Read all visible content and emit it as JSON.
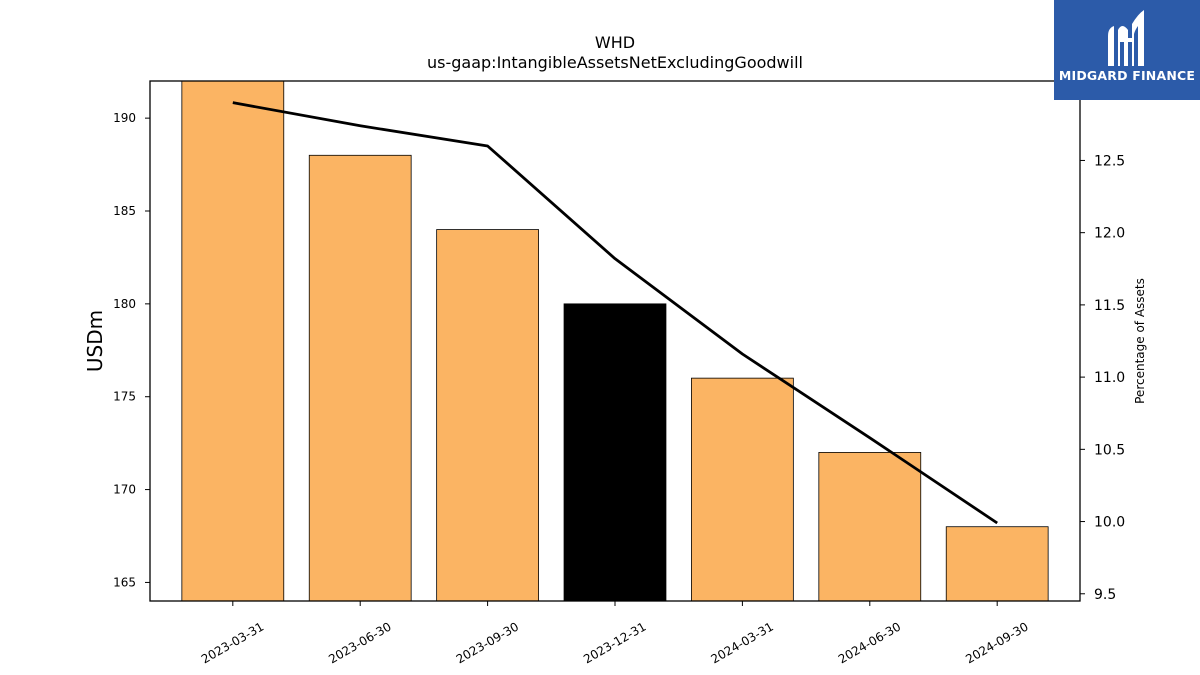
{
  "chart_data": {
    "type": "bar",
    "title": "WHD",
    "subtitle": "us-gaap:IntangibleAssetsNetExcludingGoodwill",
    "categories": [
      "2023-03-31",
      "2023-06-30",
      "2023-09-30",
      "2023-12-31",
      "2024-03-31",
      "2024-06-30",
      "2024-09-30"
    ],
    "series": [
      {
        "values": [
          192,
          188,
          184,
          180,
          176,
          172,
          168
        ],
        "axis": "left",
        "colors": [
          "#fbb463",
          "#fbb463",
          "#fbb463",
          "#000000",
          "#fbb463",
          "#fbb463",
          "#fbb463"
        ]
      },
      {
        "values": [
          12.9,
          12.74,
          12.6,
          11.82,
          11.16,
          10.58,
          9.99
        ],
        "axis": "right",
        "type": "line",
        "color": "#000000"
      }
    ],
    "ylabel": "USDm",
    "ylim": [
      164,
      192
    ],
    "yticks": [
      165,
      170,
      175,
      180,
      185,
      190
    ],
    "y2label": "Percentage of Assets",
    "y2lim": [
      9.45,
      13.05
    ],
    "y2ticks": [
      "9.5",
      "10.0",
      "10.5",
      "11.0",
      "11.5",
      "12.0",
      "12.5"
    ],
    "grid": false,
    "legend": "none"
  },
  "logo": {
    "text": "MIDGARD FINANCE",
    "background": "#2c5ba9"
  }
}
